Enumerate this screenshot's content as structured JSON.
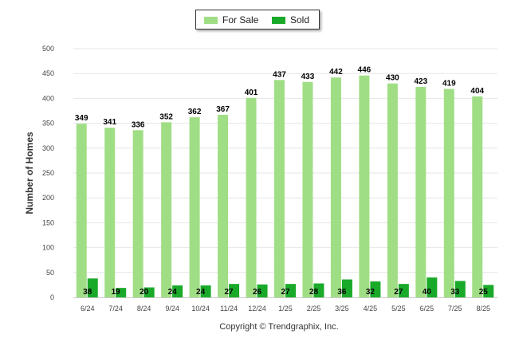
{
  "legend": {
    "items": [
      {
        "label": "For Sale",
        "color": "#a0de85"
      },
      {
        "label": "Sold",
        "color": "#1aaa2a"
      }
    ]
  },
  "footer": {
    "copyright": "Copyright © Trendgraphix, Inc."
  },
  "chart_data": {
    "type": "bar",
    "title": "",
    "xlabel": "",
    "ylabel": "Number of Homes",
    "ylim": [
      0,
      500
    ],
    "yticks": [
      0,
      50,
      100,
      150,
      200,
      250,
      300,
      350,
      400,
      450,
      500
    ],
    "grid": true,
    "legend_position": "top-center",
    "categories": [
      "6/24",
      "7/24",
      "8/24",
      "9/24",
      "10/24",
      "11/24",
      "12/24",
      "1/25",
      "2/25",
      "3/25",
      "4/25",
      "5/25",
      "6/25",
      "7/25",
      "8/25"
    ],
    "series": [
      {
        "name": "For Sale",
        "color": "#a0de85",
        "values": [
          349,
          341,
          336,
          352,
          362,
          367,
          401,
          437,
          433,
          442,
          446,
          430,
          423,
          419,
          404
        ]
      },
      {
        "name": "Sold",
        "color": "#1aaa2a",
        "values": [
          38,
          19,
          20,
          24,
          24,
          27,
          26,
          27,
          28,
          36,
          32,
          27,
          40,
          33,
          25
        ]
      }
    ]
  }
}
